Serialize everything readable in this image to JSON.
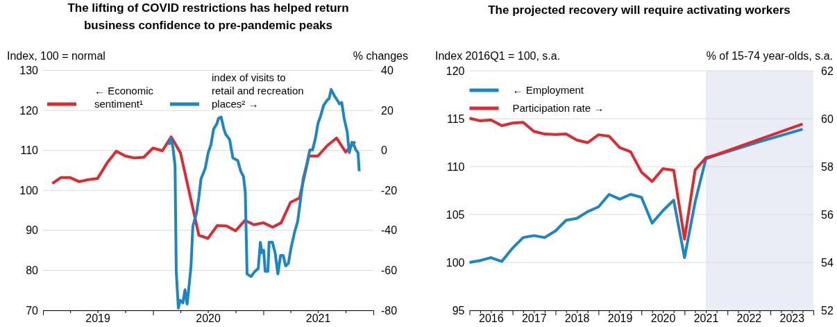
{
  "chart_data": [
    {
      "type": "line",
      "title": "The lifting of COVID restrictions has helped return business confidence to pre-pandemic peaks",
      "ylabel": "Index, 100 = normal",
      "y2label": "% changes",
      "xlim": [
        "2019-01-01",
        "2022-01-01"
      ],
      "xticks": [
        {
          "value": "2019-01-01",
          "label": null
        },
        {
          "value": "2019-04-01",
          "label": null
        },
        {
          "value": "2019-07-01",
          "label": "2019"
        },
        {
          "value": "2019-10-01",
          "label": null
        },
        {
          "value": "2020-01-01",
          "label": null
        },
        {
          "value": "2020-04-01",
          "label": null
        },
        {
          "value": "2020-07-01",
          "label": "2020"
        },
        {
          "value": "2020-10-01",
          "label": null
        },
        {
          "value": "2021-01-01",
          "label": null
        },
        {
          "value": "2021-04-01",
          "label": null
        },
        {
          "value": "2021-07-01",
          "label": "2021"
        },
        {
          "value": "2021-10-01",
          "label": null
        },
        {
          "value": "2022-01-01",
          "label": null
        }
      ],
      "ylim": [
        70,
        130
      ],
      "yticks": [
        70,
        80,
        90,
        100,
        110,
        120,
        130
      ],
      "y2lim": [
        -80,
        40
      ],
      "y2ticks": [
        -80,
        -60,
        -40,
        -20,
        0,
        20,
        40
      ],
      "grid": "y",
      "legend": "top left",
      "line_style": "solid",
      "marker": "none",
      "series": [
        {
          "name": "← Economic sentiment¹",
          "color": "#e2282f",
          "x": [
            "2019-02",
            "2019-03",
            "2019-04",
            "2019-05",
            "2019-06",
            "2019-07",
            "2019-08",
            "2019-09",
            "2019-10",
            "2019-11",
            "2019-12",
            "2020-01",
            "2020-02",
            "2020-03",
            "2020-04",
            "2020-06",
            "2020-07",
            "2020-08",
            "2020-09",
            "2020-10",
            "2020-11",
            "2020-12",
            "2021-01",
            "2021-02",
            "2021-03",
            "2021-04",
            "2021-05",
            "2021-06",
            "2021-07",
            "2021-08",
            "2021-09",
            "2021-10",
            "2021-11"
          ],
          "values": [
            101.7,
            103.2,
            103.2,
            102.2,
            102.7,
            103.0,
            106.8,
            109.8,
            108.6,
            108.1,
            108.3,
            110.6,
            109.9,
            113.4,
            109.4,
            88.8,
            88.0,
            91.2,
            91.1,
            89.9,
            92.5,
            91.4,
            91.9,
            90.8,
            91.9,
            97.0,
            98.1,
            108.6,
            108.6,
            111.2,
            113.1,
            109.6,
            112.2
          ]
        },
        {
          "name": "index of visits to retail and recreation places² →",
          "color": "#1a86c8",
          "axis": "y2",
          "x": [
            "2020-02-22",
            "2020-02-29",
            "2020-03-07",
            "2020-03-14",
            "2020-03-18",
            "2020-03-25",
            "2020-03-31",
            "2020-04-09",
            "2020-04-16",
            "2020-04-23",
            "2020-04-30",
            "2020-05-06",
            "2020-05-12",
            "2020-05-24",
            "2020-06-01",
            "2020-06-08",
            "2020-06-22",
            "2020-07-02",
            "2020-07-11",
            "2020-07-20",
            "2020-07-31",
            "2020-08-05",
            "2020-08-14",
            "2020-08-23",
            "2020-08-29",
            "2020-09-11",
            "2020-09-22",
            "2020-10-08",
            "2020-10-18",
            "2020-10-27",
            "2020-11-02",
            "2020-11-08",
            "2020-11-21",
            "2020-12-04",
            "2020-12-15",
            "2020-12-22",
            "2020-12-27",
            "2021-01-02",
            "2021-01-07",
            "2021-01-16",
            "2021-01-20",
            "2021-01-31",
            "2021-02-09",
            "2021-02-18",
            "2021-02-27",
            "2021-03-08",
            "2021-03-16",
            "2021-03-25",
            "2021-04-03",
            "2021-04-15",
            "2021-04-25",
            "2021-05-04",
            "2021-05-13",
            "2021-05-26",
            "2021-06-04",
            "2021-06-13",
            "2021-06-22",
            "2021-07-01",
            "2021-07-10",
            "2021-07-20",
            "2021-08-01",
            "2021-08-07",
            "2021-08-14",
            "2021-08-25",
            "2021-09-03",
            "2021-09-10",
            "2021-09-18",
            "2021-09-26",
            "2021-10-06",
            "2021-10-13",
            "2021-10-22",
            "2021-10-28",
            "2021-11-04",
            "2021-11-11",
            "2021-11-15"
          ],
          "values": [
            2.8,
            6.1,
            1.5,
            -7.7,
            -60.5,
            -78.9,
            -75,
            -76.3,
            -69.7,
            -76.9,
            -67,
            -57.8,
            -38,
            -31.5,
            -23.5,
            -14.3,
            -9,
            -1.1,
            2.8,
            10.7,
            13.4,
            16,
            16.7,
            10.7,
            8.1,
            5.5,
            -3.8,
            -5.1,
            -10.4,
            -13,
            -20.9,
            -61.8,
            -63.1,
            -60.5,
            -59.1,
            -46,
            -51.2,
            -49.9,
            -60.5,
            -60.5,
            -46,
            -46,
            -51.2,
            -61.8,
            -52.6,
            -52.6,
            -57.8,
            -56.5,
            -48.6,
            -40.7,
            -35.4,
            -24.9,
            -14.3,
            -6.4,
            0.2,
            0.2,
            5.5,
            13.4,
            17.3,
            22.6,
            25.2,
            25.9,
            30.5,
            27.2,
            25.2,
            23.3,
            24,
            16,
            9.4,
            -1.1,
            4.1,
            2.8,
            0.2,
            -1.1,
            -10.4
          ]
        }
      ]
    },
    {
      "type": "line",
      "title": "The projected recovery will require activating workers",
      "ylabel": "Index 2016Q1 = 100, s.a.",
      "y2label": "% of 15-74 year-olds, s.a.",
      "xlim": [
        "2016-01-01",
        "2024-01-01"
      ],
      "xticks": [
        {
          "value": "2016-01-01",
          "label": null
        },
        {
          "value": "2016-04-01",
          "label": null
        },
        {
          "value": "2016-07-01",
          "label": "2016"
        },
        {
          "value": "2016-10-01",
          "label": null
        },
        {
          "value": "2017-01-01",
          "label": null
        },
        {
          "value": "2017-04-01",
          "label": null
        },
        {
          "value": "2017-07-01",
          "label": "2017"
        },
        {
          "value": "2017-10-01",
          "label": null
        },
        {
          "value": "2018-01-01",
          "label": null
        },
        {
          "value": "2018-04-01",
          "label": null
        },
        {
          "value": "2018-07-01",
          "label": "2018"
        },
        {
          "value": "2018-10-01",
          "label": null
        },
        {
          "value": "2019-01-01",
          "label": null
        },
        {
          "value": "2019-04-01",
          "label": null
        },
        {
          "value": "2019-07-01",
          "label": "2019"
        },
        {
          "value": "2019-10-01",
          "label": null
        },
        {
          "value": "2020-01-01",
          "label": null
        },
        {
          "value": "2020-04-01",
          "label": null
        },
        {
          "value": "2020-07-01",
          "label": "2020"
        },
        {
          "value": "2020-10-01",
          "label": null
        },
        {
          "value": "2021-01-01",
          "label": null
        },
        {
          "value": "2021-04-01",
          "label": null
        },
        {
          "value": "2021-07-01",
          "label": "2021"
        },
        {
          "value": "2021-10-01",
          "label": null
        },
        {
          "value": "2022-01-01",
          "label": null
        },
        {
          "value": "2022-04-01",
          "label": null
        },
        {
          "value": "2022-07-01",
          "label": "2022"
        },
        {
          "value": "2022-10-01",
          "label": null
        },
        {
          "value": "2023-01-01",
          "label": null
        },
        {
          "value": "2023-04-01",
          "label": null
        },
        {
          "value": "2023-07-01",
          "label": "2023"
        },
        {
          "value": "2023-10-01",
          "label": null
        },
        {
          "value": "2024-01-01",
          "label": null
        }
      ],
      "ylim": [
        95,
        120
      ],
      "yticks": [
        95,
        100,
        105,
        110,
        115,
        120
      ],
      "y2lim": [
        52,
        62
      ],
      "y2ticks": [
        52,
        54,
        56,
        58,
        60,
        62
      ],
      "grid": "y",
      "legend": "top left",
      "line_style": "solid",
      "marker": "none",
      "bands": [
        {
          "axis": "x",
          "from": "2021-07-01",
          "to": "2024-01-01",
          "color": "#eaedf6"
        }
      ],
      "series": [
        {
          "name": "← Employment",
          "color": "#1a86c8",
          "x": [
            "2016-01",
            "2016-04",
            "2016-07",
            "2016-10",
            "2017-01",
            "2017-04",
            "2017-07",
            "2017-10",
            "2018-01",
            "2018-04",
            "2018-07",
            "2018-10",
            "2019-01",
            "2019-04",
            "2019-07",
            "2019-10",
            "2020-01",
            "2020-04",
            "2020-07",
            "2020-10",
            "2021-01",
            "2021-04",
            "2021-07",
            "2021-10",
            "2022-10",
            "2023-10"
          ],
          "values": [
            100.0,
            100.2,
            100.5,
            100.1,
            101.5,
            102.6,
            102.8,
            102.6,
            103.3,
            104.4,
            104.6,
            105.3,
            105.8,
            107.1,
            106.6,
            107.1,
            106.8,
            104.1,
            105.4,
            106.5,
            100.5,
            106.3,
            110.8,
            111.2,
            112.6,
            113.9
          ]
        },
        {
          "name": "Participation rate →",
          "color": "#e2282f",
          "axis": "y2",
          "x": [
            "2016-01",
            "2016-04",
            "2016-07",
            "2016-10",
            "2017-01",
            "2017-04",
            "2017-07",
            "2017-10",
            "2018-01",
            "2018-04",
            "2018-07",
            "2018-10",
            "2019-01",
            "2019-04",
            "2019-07",
            "2019-10",
            "2020-01",
            "2020-04",
            "2020-07",
            "2020-10",
            "2021-01",
            "2021-04",
            "2021-07",
            "2021-10",
            "2022-10",
            "2023-10"
          ],
          "values": [
            60.02,
            59.91,
            59.95,
            59.71,
            59.82,
            59.85,
            59.47,
            59.36,
            59.34,
            59.36,
            59.11,
            59.0,
            59.33,
            59.27,
            58.79,
            58.62,
            57.77,
            57.38,
            57.91,
            57.85,
            54.97,
            57.86,
            58.37,
            58.5,
            59.14,
            59.78
          ]
        }
      ]
    }
  ]
}
